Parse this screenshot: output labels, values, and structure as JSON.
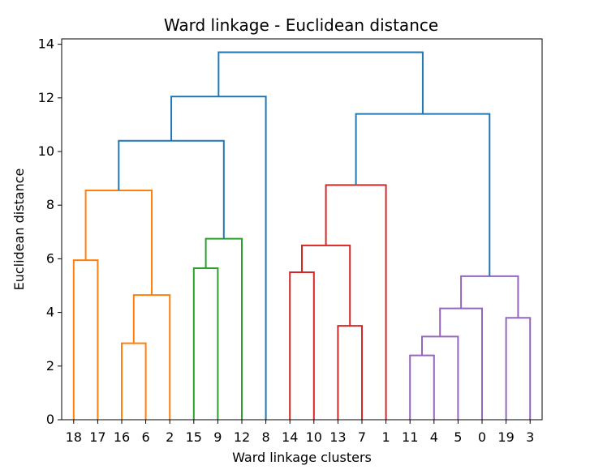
{
  "chart_data": {
    "type": "dendrogram",
    "title": "Ward linkage - Euclidean distance",
    "xlabel": "Ward linkage clusters",
    "ylabel": "Euclidean distance",
    "ylim": [
      0,
      14.2
    ],
    "yticks": [
      0,
      2,
      4,
      6,
      8,
      10,
      12,
      14
    ],
    "leaves": [
      "18",
      "17",
      "16",
      "6",
      "2",
      "15",
      "9",
      "12",
      "8",
      "14",
      "10",
      "13",
      "7",
      "1",
      "11",
      "4",
      "5",
      "0",
      "19",
      "3"
    ],
    "colors": {
      "orange": "#ff7f0e",
      "green": "#2ca02c",
      "red": "#d62728",
      "purple": "#9467bd",
      "blue": "#1f77b4"
    },
    "links": [
      {
        "left": 0,
        "right": 1,
        "height": 5.95,
        "color": "orange"
      },
      {
        "left": 2,
        "right": 3,
        "height": 2.85,
        "color": "orange"
      },
      {
        "left": 2.5,
        "right": 4,
        "height": 4.65,
        "color": "orange"
      },
      {
        "left": 0.5,
        "right": 3.25,
        "height": 8.55,
        "color": "orange"
      },
      {
        "left": 5,
        "right": 6,
        "height": 5.65,
        "color": "green"
      },
      {
        "left": 5.5,
        "right": 7,
        "height": 6.75,
        "color": "green"
      },
      {
        "left": 1.875,
        "right": 6.25,
        "height": 10.4,
        "color": "blue"
      },
      {
        "left": 4.0625,
        "right": 8,
        "height": 12.05,
        "color": "blue"
      },
      {
        "left": 9,
        "right": 10,
        "height": 5.5,
        "color": "red"
      },
      {
        "left": 11,
        "right": 12,
        "height": 3.5,
        "color": "red"
      },
      {
        "left": 9.5,
        "right": 11.5,
        "height": 6.5,
        "color": "red"
      },
      {
        "left": 10.5,
        "right": 13,
        "height": 8.75,
        "color": "red"
      },
      {
        "left": 14,
        "right": 15,
        "height": 2.4,
        "color": "purple"
      },
      {
        "left": 14.5,
        "right": 16,
        "height": 3.1,
        "color": "purple"
      },
      {
        "left": 15.25,
        "right": 17,
        "height": 4.15,
        "color": "purple"
      },
      {
        "left": 18,
        "right": 19,
        "height": 3.8,
        "color": "purple"
      },
      {
        "left": 16.125,
        "right": 18.5,
        "height": 5.35,
        "color": "purple"
      },
      {
        "left": 11.75,
        "right": 17.3125,
        "height": 11.4,
        "color": "blue"
      },
      {
        "left": 6.03125,
        "right": 14.53125,
        "height": 13.7,
        "color": "blue"
      }
    ]
  }
}
